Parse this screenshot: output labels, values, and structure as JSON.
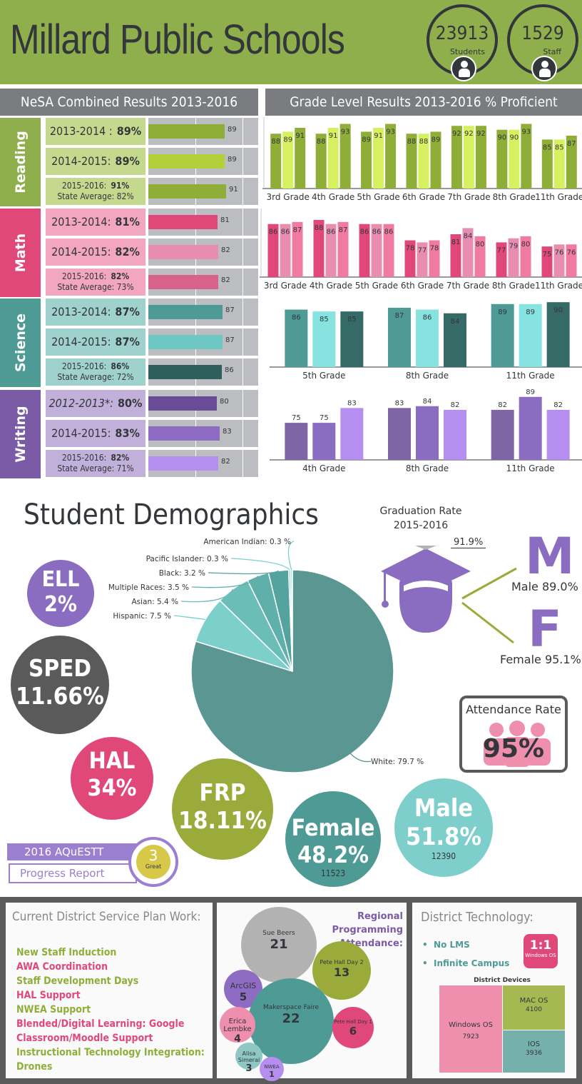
{
  "header": {
    "title": "Millard Public Schools",
    "stats": [
      {
        "value": "23913",
        "label": "Students"
      },
      {
        "value": "1529",
        "label": "Staff"
      }
    ]
  },
  "nesa": {
    "title": "NeSA Combined Results 2013-2016",
    "subjects": [
      {
        "name": "Reading",
        "tab_color": "#8fae4c",
        "rows": [
          {
            "l1": "2013-2014 :",
            "pct": "89%",
            "value": 89,
            "row_color": "#c5d98e",
            "bar_color": "#8fae38"
          },
          {
            "l1": "2014-2015:",
            "pct": "89%",
            "value": 89,
            "row_color": "#c5d98e",
            "bar_color": "#b3cf3a"
          },
          {
            "l1": "2015-2016:",
            "pct": "91%",
            "l2": "State Average: 82%",
            "value": 91,
            "row_color": "#c5d98e",
            "bar_color": "#8fae38"
          }
        ]
      },
      {
        "name": "Math",
        "tab_color": "#e0487a",
        "rows": [
          {
            "l1": "2013-2014:",
            "pct": "81%",
            "value": 81,
            "row_color": "#f2a6bf",
            "bar_color": "#e0487a"
          },
          {
            "l1": "2014-2015:",
            "pct": "82%",
            "value": 82,
            "row_color": "#f2a6bf",
            "bar_color": "#e68db0"
          },
          {
            "l1": "2015-2016:",
            "pct": "82%",
            "l2": "State Average: 73%",
            "value": 82,
            "row_color": "#f2a6bf",
            "bar_color": "#d9628a"
          }
        ]
      },
      {
        "name": "Science",
        "tab_color": "#4e9a95",
        "rows": [
          {
            "l1": "2013-2014:",
            "pct": "87%",
            "value": 87,
            "row_color": "#9fd1cd",
            "bar_color": "#4e9a95"
          },
          {
            "l1": "2014-2015:",
            "pct": "87%",
            "value": 87,
            "row_color": "#9fd1cd",
            "bar_color": "#6ec7c2"
          },
          {
            "l1": "2015-2016:",
            "pct": "86%",
            "l2": "State Average: 72%",
            "value": 86,
            "row_color": "#9fd1cd",
            "bar_color": "#2f5f5c"
          }
        ]
      },
      {
        "name": "Writing",
        "tab_color": "#7b5aa6",
        "rows": [
          {
            "l1": "2012-2013*:",
            "pct": "80%",
            "value": 80,
            "row_color": "#c1b0da",
            "bar_color": "#6a4c96"
          },
          {
            "l1": "2014-2015:",
            "pct": "83%",
            "value": 83,
            "row_color": "#c1b0da",
            "bar_color": "#8f6cc4"
          },
          {
            "l1": "2015-2016:",
            "pct": "82%",
            "l2": "State Average: 71%",
            "value": 82,
            "row_color": "#c1b0da",
            "bar_color": "#b58ef0"
          }
        ]
      }
    ]
  },
  "chart_data": [
    {
      "type": "bar",
      "title": "Grade Level Results 2013-2016  % Proficient",
      "subject": "Reading",
      "categories": [
        "3rd Grade",
        "4th Grade",
        "5th Grade",
        "6th Grade",
        "7th Grade",
        "8th Grade",
        "11th Grade"
      ],
      "series": [
        {
          "values": [
            88,
            88,
            89,
            88,
            92,
            90,
            85
          ],
          "color": "#8fae38"
        },
        {
          "values": [
            89,
            91,
            91,
            88,
            92,
            90,
            85
          ],
          "color": "#d6f060"
        },
        {
          "values": [
            91,
            93,
            93,
            89,
            92,
            93,
            87
          ],
          "color": "#8fae38"
        }
      ]
    },
    {
      "type": "bar",
      "subject": "Math",
      "categories": [
        "3rd Grade",
        "4th Grade",
        "5th Grade",
        "6th Grade",
        "7th Grade",
        "8th Grade",
        "11th Grade"
      ],
      "series": [
        {
          "values": [
            86,
            88,
            86,
            78,
            81,
            77,
            75
          ],
          "color": "#e0487a"
        },
        {
          "values": [
            86,
            86,
            86,
            77,
            84,
            79,
            76
          ],
          "color": "#e68db0"
        },
        {
          "values": [
            87,
            87,
            86,
            78,
            80,
            80,
            76
          ],
          "color": "#f07aa0"
        }
      ]
    },
    {
      "type": "bar",
      "subject": "Science",
      "categories": [
        "5th Grade",
        "8th Grade",
        "11th Grade"
      ],
      "series": [
        {
          "values": [
            86,
            87,
            89
          ],
          "color": "#4e9a95"
        },
        {
          "values": [
            85,
            86,
            89
          ],
          "color": "#86e3e0"
        },
        {
          "values": [
            85,
            84,
            90
          ],
          "color": "#356a66"
        }
      ]
    },
    {
      "type": "bar",
      "subject": "Writing",
      "categories": [
        "4th Grade",
        "8th Grade",
        "11th Grade"
      ],
      "series": [
        {
          "values": [
            75,
            83,
            82
          ],
          "color": "#7e65a6"
        },
        {
          "values": [
            75,
            84,
            89
          ],
          "color": "#8a6cc0"
        },
        {
          "values": [
            83,
            82,
            82
          ],
          "color": "#b58ef0"
        }
      ]
    },
    {
      "type": "pie",
      "title": "Student Demographics",
      "slices": [
        {
          "label": "White: 79.7 %",
          "value": 79.7,
          "color": "#5a9692"
        },
        {
          "label": "Hispanic: 7.5 %",
          "value": 7.5,
          "color": "#7ccfcb"
        },
        {
          "label": "Asian: 5.4 %",
          "value": 5.4,
          "color": "#6bbdb8"
        },
        {
          "label": "Multiple Races: 3.5 %",
          "value": 3.5,
          "color": "#5fb0ab"
        },
        {
          "label": "Black: 3.2 %",
          "value": 3.2,
          "color": "#54a39e"
        },
        {
          "label": "Pacific Islander: 0.3 %",
          "value": 0.3,
          "color": "#7ccfcb"
        },
        {
          "label": "American Indian: 0.3 %",
          "value": 0.3,
          "color": "#9fe0dd"
        }
      ]
    }
  ],
  "grade_title": "Grade Level Results 2013-2016  % Proficient",
  "demographics": {
    "title": "Student Demographics",
    "graduation": {
      "title1": "Graduation Rate",
      "title2": "2015-2016",
      "overall": "91.9%",
      "male_letter": "M",
      "male": "Male 89.0%",
      "female_letter": "F",
      "female": "Female 95.1%"
    },
    "attendance": {
      "title": "Attendance Rate",
      "value": "95%"
    },
    "circles": {
      "ell": {
        "label": "ELL",
        "value": "2%"
      },
      "sped": {
        "label": "SPED",
        "value": "11.66%"
      },
      "hal": {
        "label": "HAL",
        "value": "34%"
      },
      "frp": {
        "label": "FRP",
        "value": "18.11%"
      },
      "female": {
        "label": "Female",
        "value": "48.2%",
        "count": "11523"
      },
      "male": {
        "label": "Male",
        "value": "51.8%",
        "count": "12390"
      }
    },
    "aquestt": {
      "year_label": "2016 AQuESTT",
      "report": "Progress Report",
      "score": "3",
      "score_label": "Great"
    }
  },
  "service_plan": {
    "title": "Current District Service Plan Work:",
    "items": [
      {
        "text": "New Staff Induction",
        "color": "#8fae38"
      },
      {
        "text": "AWA Coordination",
        "color": "#e0487a"
      },
      {
        "text": "Staff Development Days",
        "color": "#8fae38"
      },
      {
        "text": "HAL Support",
        "color": "#e0487a"
      },
      {
        "text": "NWEA Support",
        "color": "#8fae38"
      },
      {
        "text": "Blended/Digital Learning: Google",
        "color": "#e0487a"
      },
      {
        "text": "Classroom/Moodle Support",
        "color": "#e0487a"
      },
      {
        "text": "Instructional Technology Integration: Drones",
        "color": "#8fae38"
      }
    ]
  },
  "regional": {
    "title1": "Regional",
    "title2": "Programming",
    "title3": "Attendance:",
    "bubbles": [
      {
        "name": "Sue Beers",
        "value": "21",
        "color": "#b2b2b2"
      },
      {
        "name": "Pete Hall Day 2",
        "value": "13",
        "color": "#9aab3c"
      },
      {
        "name": "ArcGIS",
        "value": "5",
        "color": "#8f6cc4"
      },
      {
        "name": "Makerspace Faire",
        "value": "22",
        "color": "#4e9a95"
      },
      {
        "name": "Erica Lembke",
        "value": "4",
        "color": "#ef8fae"
      },
      {
        "name": "Pete Hall Day 1",
        "value": "6",
        "color": "#e0487a"
      },
      {
        "name": "Alisa Simeral",
        "value": "3",
        "color": "#8fc7c4"
      },
      {
        "name": "NWEA",
        "value": "1",
        "color": "#b58ef0"
      }
    ]
  },
  "technology": {
    "title": "District Technology:",
    "items": [
      "No LMS",
      "Infinite Campus"
    ],
    "ratio": "1:1",
    "ratio_label": "Windows OS",
    "devices_title": "District Devices",
    "devices": [
      {
        "name": "Windows OS",
        "value": "7923",
        "color": "#ef8fae"
      },
      {
        "name": "MAC OS",
        "value": "4100",
        "color": "#a6b852"
      },
      {
        "name": "IOS",
        "value": "3936",
        "color": "#76b0ad"
      }
    ]
  }
}
